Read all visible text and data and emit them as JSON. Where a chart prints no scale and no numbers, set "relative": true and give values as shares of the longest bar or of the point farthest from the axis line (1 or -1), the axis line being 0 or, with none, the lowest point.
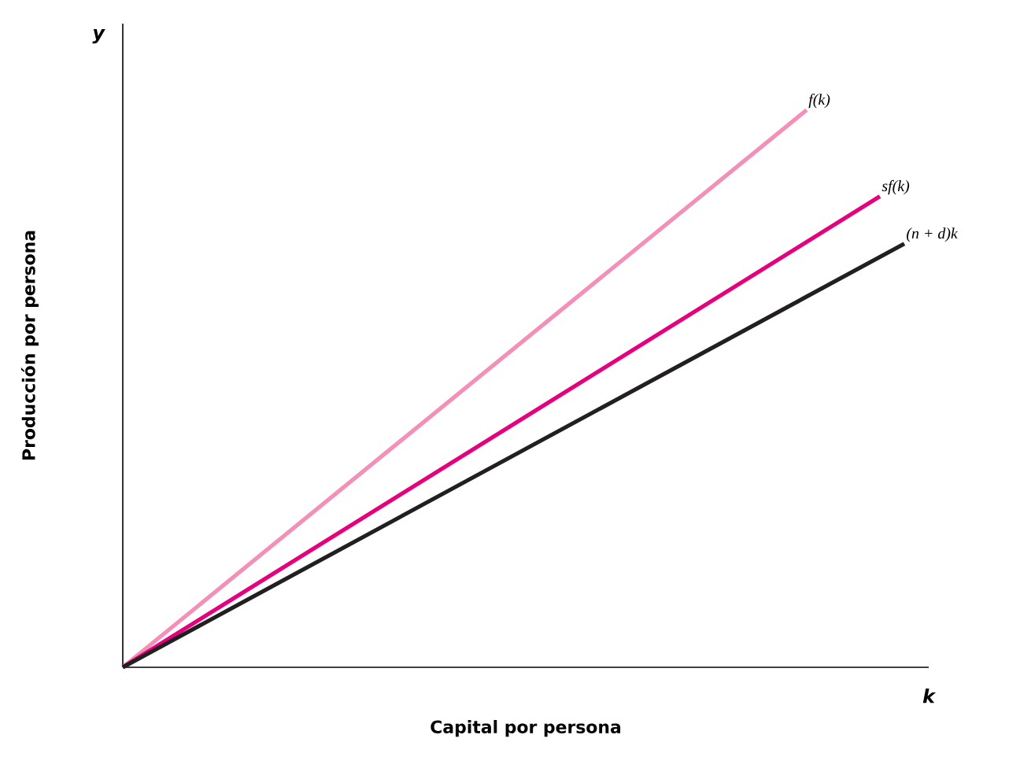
{
  "chart_data": {
    "type": "line",
    "relative": true,
    "xlabel": "Capital por persona",
    "ylabel": "Producción por persona",
    "annotations": [
      "y",
      "k"
    ],
    "tick_labels": false,
    "marker": "none",
    "line_style": "solid",
    "categories": [
      null,
      null,
      null,
      null,
      null,
      null,
      null,
      null,
      null,
      null,
      null,
      null,
      null,
      null,
      null,
      null,
      null,
      null,
      null,
      null,
      null,
      null,
      null,
      null,
      null,
      null,
      null,
      null,
      null,
      null,
      null,
      null,
      null,
      null
    ],
    "series": [
      {
        "name": "f(k)",
        "color": "#f48fb8",
        "values": [
          0,
          null,
          null,
          null,
          null,
          null,
          null,
          null,
          null,
          null,
          null,
          null,
          null,
          null,
          null,
          null,
          null,
          null,
          null,
          null,
          null,
          null,
          null,
          null,
          null,
          null,
          null,
          null,
          1,
          null,
          null,
          null,
          null,
          null
        ]
      },
      {
        "name": "sf(k)",
        "color": "#e5007d",
        "values": [
          0,
          null,
          null,
          null,
          null,
          null,
          null,
          null,
          null,
          null,
          null,
          null,
          null,
          null,
          null,
          null,
          null,
          null,
          null,
          null,
          null,
          null,
          null,
          null,
          null,
          null,
          null,
          null,
          null,
          null,
          null,
          0.845,
          null,
          null
        ]
      },
      {
        "name": "(n + d)k",
        "color": "#231f20",
        "values": [
          0,
          null,
          null,
          null,
          null,
          null,
          null,
          null,
          null,
          null,
          null,
          null,
          null,
          null,
          null,
          null,
          null,
          null,
          null,
          null,
          null,
          null,
          null,
          null,
          null,
          null,
          null,
          null,
          null,
          null,
          null,
          null,
          0.76,
          null
        ]
      }
    ]
  }
}
